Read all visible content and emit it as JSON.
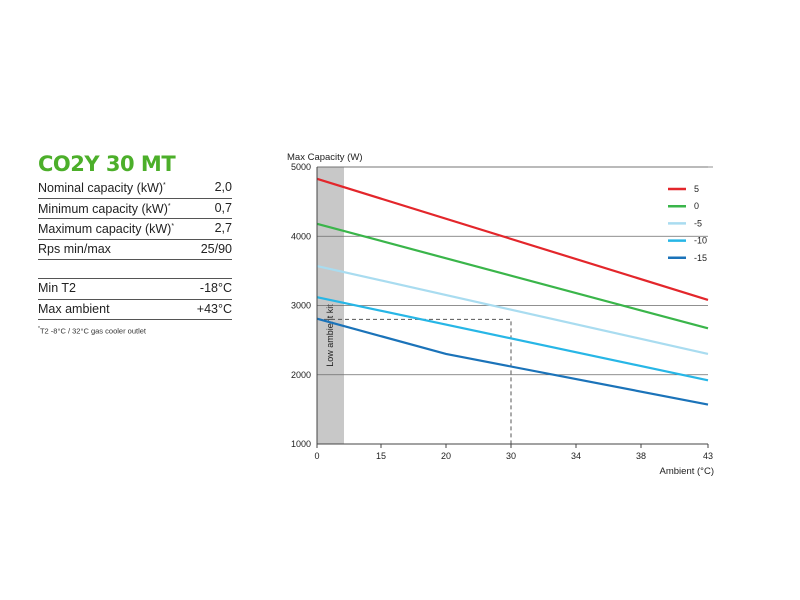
{
  "spec": {
    "title": "CO2Y 30 MT",
    "rows": [
      {
        "label": "Nominal capacity (kW)",
        "sup": "*",
        "value": "2,0"
      },
      {
        "label": "Minimum capacity (kW)",
        "sup": "*",
        "value": "0,7"
      },
      {
        "label": "Maximum capacity (kW)",
        "sup": "*",
        "value": "2,7"
      },
      {
        "label": "Rps min/max",
        "sup": "",
        "value": "25/90"
      }
    ],
    "rows2": [
      {
        "label": "Min T2",
        "sup": "",
        "value": "-18°C"
      },
      {
        "label": "Max ambient",
        "sup": "",
        "value": "+43°C"
      }
    ],
    "note_sup": "*",
    "note": "T2 -8°C / 32°C gas cooler outlet"
  },
  "chart_data": {
    "type": "line",
    "ylabel": "Max Capacity (W)",
    "xlabel": "Ambient (°C)",
    "x_ticks": [
      "0",
      "15",
      "20",
      "30",
      "34",
      "38",
      "43"
    ],
    "y_ticks": [
      1000,
      2000,
      3000,
      4000,
      5000
    ],
    "ylim": [
      1000,
      5000
    ],
    "grid": "horizontal",
    "legend_position": "top-right",
    "shaded_region": {
      "label": "Low ambient kit",
      "color": "#c8c8c8"
    },
    "reference_point": {
      "x": 30,
      "y": 2800,
      "style": "dashed"
    },
    "series": [
      {
        "name": "5",
        "color": "#e3262b",
        "points": [
          [
            0,
            4830
          ],
          [
            43,
            3080
          ]
        ]
      },
      {
        "name": "0",
        "color": "#3ab54a",
        "points": [
          [
            0,
            4180
          ],
          [
            43,
            2670
          ]
        ]
      },
      {
        "name": "-5",
        "color": "#a9dcf0",
        "points": [
          [
            0,
            3570
          ],
          [
            43,
            2300
          ]
        ]
      },
      {
        "name": "-10",
        "color": "#27b6e6",
        "points": [
          [
            0,
            3120
          ],
          [
            43,
            1920
          ]
        ]
      },
      {
        "name": "-15",
        "color": "#1b73b9",
        "points": [
          [
            0,
            2810
          ],
          [
            20,
            2300
          ],
          [
            43,
            1570
          ]
        ]
      }
    ]
  }
}
